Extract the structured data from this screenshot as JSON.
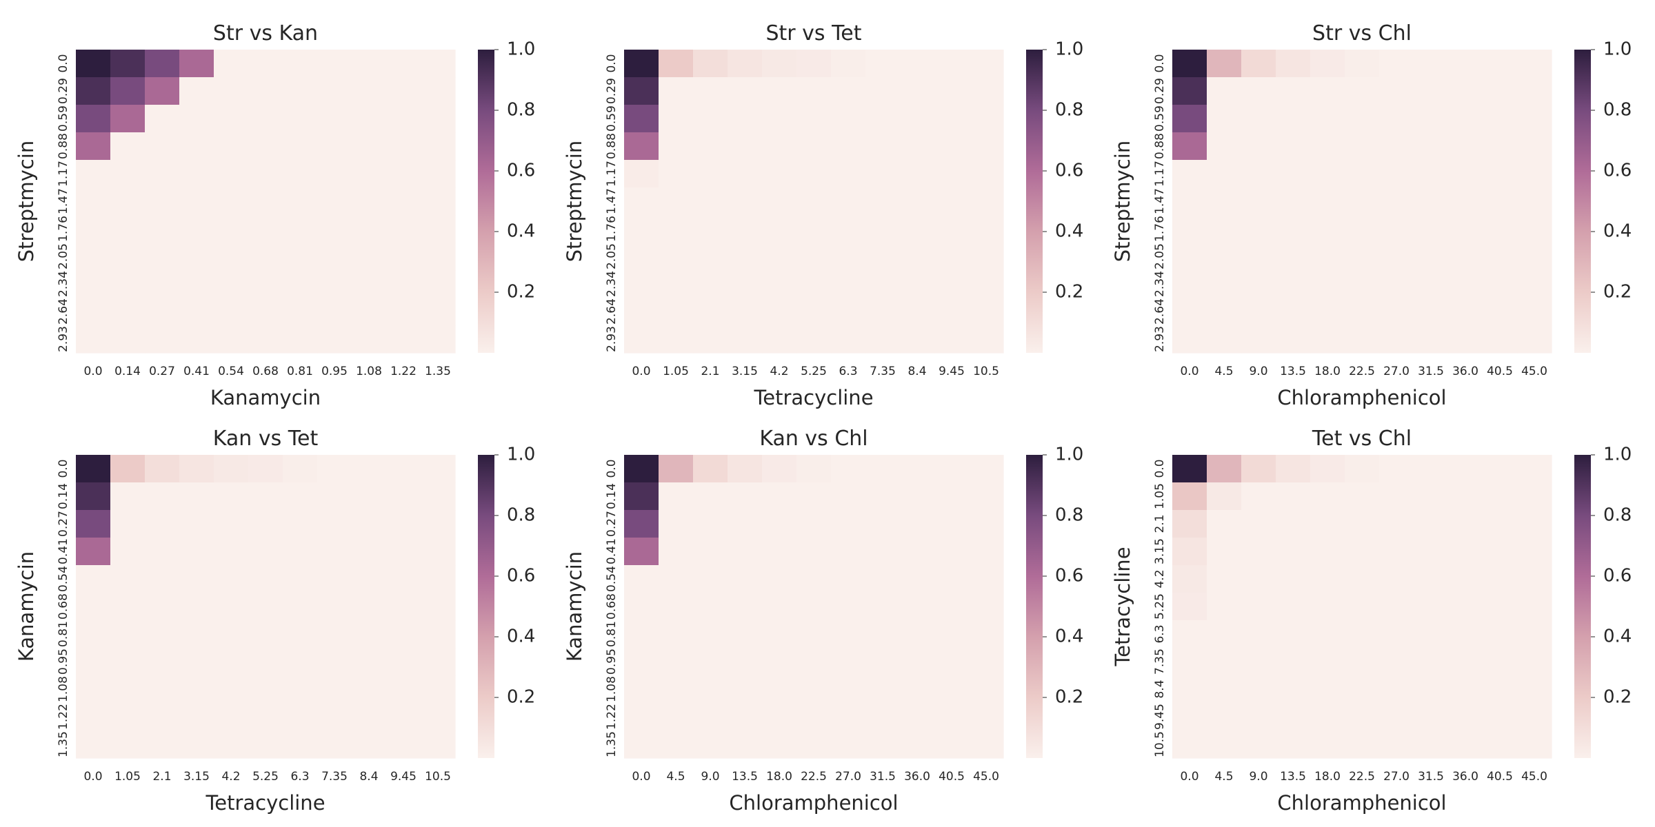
{
  "colormap": {
    "name": "seaborn-cubehelix-light",
    "stops": [
      {
        "v": 0.0,
        "color": "#faf0ec"
      },
      {
        "v": 0.2,
        "color": "#eccbc8"
      },
      {
        "v": 0.4,
        "color": "#d4a0ad"
      },
      {
        "v": 0.6,
        "color": "#b06c98"
      },
      {
        "v": 0.8,
        "color": "#784b7e"
      },
      {
        "v": 1.0,
        "color": "#2d1e3e"
      }
    ]
  },
  "chart_data": [
    {
      "type": "heatmap",
      "title": "Str vs Kan",
      "xlabel": "Kanamycin",
      "ylabel": "Streptmycin",
      "x_ticks": [
        "0.0",
        "0.14",
        "0.27",
        "0.41",
        "0.54",
        "0.68",
        "0.81",
        "0.95",
        "1.08",
        "1.22",
        "1.35"
      ],
      "y_ticks": [
        "0.0",
        "0.29",
        "0.59",
        "0.88",
        "1.17",
        "1.47",
        "1.76",
        "2.05",
        "2.34",
        "2.64",
        "2.93"
      ],
      "colorbar_ticks": [
        "0.2",
        "0.4",
        "0.6",
        "0.8",
        "1.0"
      ],
      "vmin": 0.0,
      "vmax": 1.0,
      "matrix": [
        [
          1.0,
          0.92,
          0.8,
          0.62,
          0,
          0,
          0,
          0,
          0,
          0,
          0
        ],
        [
          0.92,
          0.8,
          0.62,
          0,
          0,
          0,
          0,
          0,
          0,
          0,
          0
        ],
        [
          0.8,
          0.62,
          0,
          0,
          0,
          0,
          0,
          0,
          0,
          0,
          0
        ],
        [
          0.62,
          0,
          0,
          0,
          0,
          0,
          0,
          0,
          0,
          0,
          0
        ],
        [
          0,
          0,
          0,
          0,
          0,
          0,
          0,
          0,
          0,
          0,
          0
        ],
        [
          0,
          0,
          0,
          0,
          0,
          0,
          0,
          0,
          0,
          0,
          0
        ],
        [
          0,
          0,
          0,
          0,
          0,
          0,
          0,
          0,
          0,
          0,
          0
        ],
        [
          0,
          0,
          0,
          0,
          0,
          0,
          0,
          0,
          0,
          0,
          0
        ],
        [
          0,
          0,
          0,
          0,
          0,
          0,
          0,
          0,
          0,
          0,
          0
        ],
        [
          0,
          0,
          0,
          0,
          0,
          0,
          0,
          0,
          0,
          0,
          0
        ],
        [
          0,
          0,
          0,
          0,
          0,
          0,
          0,
          0,
          0,
          0,
          0
        ]
      ]
    },
    {
      "type": "heatmap",
      "title": "Str vs Tet",
      "xlabel": "Tetracycline",
      "ylabel": "Streptmycin",
      "x_ticks": [
        "0.0",
        "1.05",
        "2.1",
        "3.15",
        "4.2",
        "5.25",
        "6.3",
        "7.35",
        "8.4",
        "9.45",
        "10.5"
      ],
      "y_ticks": [
        "0.0",
        "0.29",
        "0.59",
        "0.88",
        "1.17",
        "1.47",
        "1.76",
        "2.05",
        "2.34",
        "2.64",
        "2.93"
      ],
      "colorbar_ticks": [
        "0.2",
        "0.4",
        "0.6",
        "0.8",
        "1.0"
      ],
      "vmin": 0.0,
      "vmax": 1.0,
      "matrix": [
        [
          1.0,
          0.2,
          0.1,
          0.06,
          0.04,
          0.03,
          0.01,
          0,
          0,
          0,
          0
        ],
        [
          0.92,
          0,
          0,
          0,
          0,
          0,
          0,
          0,
          0,
          0,
          0
        ],
        [
          0.8,
          0,
          0,
          0,
          0,
          0,
          0,
          0,
          0,
          0,
          0
        ],
        [
          0.62,
          0,
          0,
          0,
          0,
          0,
          0,
          0,
          0,
          0,
          0
        ],
        [
          0.02,
          0,
          0,
          0,
          0,
          0,
          0,
          0,
          0,
          0,
          0
        ],
        [
          0,
          0,
          0,
          0,
          0,
          0,
          0,
          0,
          0,
          0,
          0
        ],
        [
          0,
          0,
          0,
          0,
          0,
          0,
          0,
          0,
          0,
          0,
          0
        ],
        [
          0,
          0,
          0,
          0,
          0,
          0,
          0,
          0,
          0,
          0,
          0
        ],
        [
          0,
          0,
          0,
          0,
          0,
          0,
          0,
          0,
          0,
          0,
          0
        ],
        [
          0,
          0,
          0,
          0,
          0,
          0,
          0,
          0,
          0,
          0,
          0
        ],
        [
          0,
          0,
          0,
          0,
          0,
          0,
          0,
          0,
          0,
          0,
          0
        ]
      ]
    },
    {
      "type": "heatmap",
      "title": "Str vs Chl",
      "xlabel": "Chloramphenicol",
      "ylabel": "Streptmycin",
      "x_ticks": [
        "0.0",
        "4.5",
        "9.0",
        "13.5",
        "18.0",
        "22.5",
        "27.0",
        "31.5",
        "36.0",
        "40.5",
        "45.0"
      ],
      "y_ticks": [
        "0.0",
        "0.29",
        "0.59",
        "0.88",
        "1.17",
        "1.47",
        "1.76",
        "2.05",
        "2.34",
        "2.64",
        "2.93"
      ],
      "colorbar_ticks": [
        "0.2",
        "0.4",
        "0.6",
        "0.8",
        "1.0"
      ],
      "vmin": 0.0,
      "vmax": 1.0,
      "matrix": [
        [
          1.0,
          0.3,
          0.12,
          0.06,
          0.03,
          0.01,
          0,
          0,
          0,
          0,
          0
        ],
        [
          0.92,
          0,
          0,
          0,
          0,
          0,
          0,
          0,
          0,
          0,
          0
        ],
        [
          0.8,
          0,
          0,
          0,
          0,
          0,
          0,
          0,
          0,
          0,
          0
        ],
        [
          0.62,
          0,
          0,
          0,
          0,
          0,
          0,
          0,
          0,
          0,
          0
        ],
        [
          0,
          0,
          0,
          0,
          0,
          0,
          0,
          0,
          0,
          0,
          0
        ],
        [
          0,
          0,
          0,
          0,
          0,
          0,
          0,
          0,
          0,
          0,
          0
        ],
        [
          0,
          0,
          0,
          0,
          0,
          0,
          0,
          0,
          0,
          0,
          0
        ],
        [
          0,
          0,
          0,
          0,
          0,
          0,
          0,
          0,
          0,
          0,
          0
        ],
        [
          0,
          0,
          0,
          0,
          0,
          0,
          0,
          0,
          0,
          0,
          0
        ],
        [
          0,
          0,
          0,
          0,
          0,
          0,
          0,
          0,
          0,
          0,
          0
        ],
        [
          0,
          0,
          0,
          0,
          0,
          0,
          0,
          0,
          0,
          0,
          0
        ]
      ]
    },
    {
      "type": "heatmap",
      "title": "Kan vs Tet",
      "xlabel": "Tetracycline",
      "ylabel": "Kanamycin",
      "x_ticks": [
        "0.0",
        "1.05",
        "2.1",
        "3.15",
        "4.2",
        "5.25",
        "6.3",
        "7.35",
        "8.4",
        "9.45",
        "10.5"
      ],
      "y_ticks": [
        "0.0",
        "0.14",
        "0.27",
        "0.41",
        "0.54",
        "0.68",
        "0.81",
        "0.95",
        "1.08",
        "1.22",
        "1.35"
      ],
      "colorbar_ticks": [
        "0.2",
        "0.4",
        "0.6",
        "0.8",
        "1.0"
      ],
      "vmin": 0.0,
      "vmax": 1.0,
      "matrix": [
        [
          1.0,
          0.2,
          0.1,
          0.06,
          0.04,
          0.03,
          0.01,
          0,
          0,
          0,
          0
        ],
        [
          0.92,
          0,
          0,
          0,
          0,
          0,
          0,
          0,
          0,
          0,
          0
        ],
        [
          0.8,
          0,
          0,
          0,
          0,
          0,
          0,
          0,
          0,
          0,
          0
        ],
        [
          0.62,
          0,
          0,
          0,
          0,
          0,
          0,
          0,
          0,
          0,
          0
        ],
        [
          0,
          0,
          0,
          0,
          0,
          0,
          0,
          0,
          0,
          0,
          0
        ],
        [
          0,
          0,
          0,
          0,
          0,
          0,
          0,
          0,
          0,
          0,
          0
        ],
        [
          0,
          0,
          0,
          0,
          0,
          0,
          0,
          0,
          0,
          0,
          0
        ],
        [
          0,
          0,
          0,
          0,
          0,
          0,
          0,
          0,
          0,
          0,
          0
        ],
        [
          0,
          0,
          0,
          0,
          0,
          0,
          0,
          0,
          0,
          0,
          0
        ],
        [
          0,
          0,
          0,
          0,
          0,
          0,
          0,
          0,
          0,
          0,
          0
        ],
        [
          0,
          0,
          0,
          0,
          0,
          0,
          0,
          0,
          0,
          0,
          0
        ]
      ]
    },
    {
      "type": "heatmap",
      "title": "Kan vs Chl",
      "xlabel": "Chloramphenicol",
      "ylabel": "Kanamycin",
      "x_ticks": [
        "0.0",
        "4.5",
        "9.0",
        "13.5",
        "18.0",
        "22.5",
        "27.0",
        "31.5",
        "36.0",
        "40.5",
        "45.0"
      ],
      "y_ticks": [
        "0.0",
        "0.14",
        "0.27",
        "0.41",
        "0.54",
        "0.68",
        "0.81",
        "0.95",
        "1.08",
        "1.22",
        "1.35"
      ],
      "colorbar_ticks": [
        "0.2",
        "0.4",
        "0.6",
        "0.8",
        "1.0"
      ],
      "vmin": 0.0,
      "vmax": 1.0,
      "matrix": [
        [
          1.0,
          0.3,
          0.12,
          0.06,
          0.03,
          0.01,
          0,
          0,
          0,
          0,
          0
        ],
        [
          0.92,
          0,
          0,
          0,
          0,
          0,
          0,
          0,
          0,
          0,
          0
        ],
        [
          0.8,
          0,
          0,
          0,
          0,
          0,
          0,
          0,
          0,
          0,
          0
        ],
        [
          0.62,
          0,
          0,
          0,
          0,
          0,
          0,
          0,
          0,
          0,
          0
        ],
        [
          0,
          0,
          0,
          0,
          0,
          0,
          0,
          0,
          0,
          0,
          0
        ],
        [
          0,
          0,
          0,
          0,
          0,
          0,
          0,
          0,
          0,
          0,
          0
        ],
        [
          0,
          0,
          0,
          0,
          0,
          0,
          0,
          0,
          0,
          0,
          0
        ],
        [
          0,
          0,
          0,
          0,
          0,
          0,
          0,
          0,
          0,
          0,
          0
        ],
        [
          0,
          0,
          0,
          0,
          0,
          0,
          0,
          0,
          0,
          0,
          0
        ],
        [
          0,
          0,
          0,
          0,
          0,
          0,
          0,
          0,
          0,
          0,
          0
        ],
        [
          0,
          0,
          0,
          0,
          0,
          0,
          0,
          0,
          0,
          0,
          0
        ]
      ]
    },
    {
      "type": "heatmap",
      "title": "Tet vs Chl",
      "xlabel": "Chloramphenicol",
      "ylabel": "Tetracycline",
      "x_ticks": [
        "0.0",
        "4.5",
        "9.0",
        "13.5",
        "18.0",
        "22.5",
        "27.0",
        "31.5",
        "36.0",
        "40.5",
        "45.0"
      ],
      "y_ticks": [
        "0.0",
        "1.05",
        "2.1",
        "3.15",
        "4.2",
        "5.25",
        "6.3",
        "7.35",
        "8.4",
        "9.45",
        "10.5"
      ],
      "colorbar_ticks": [
        "0.2",
        "0.4",
        "0.6",
        "0.8",
        "1.0"
      ],
      "vmin": 0.0,
      "vmax": 1.0,
      "matrix": [
        [
          1.0,
          0.3,
          0.12,
          0.06,
          0.03,
          0.01,
          0,
          0,
          0,
          0,
          0
        ],
        [
          0.22,
          0.04,
          0,
          0,
          0,
          0,
          0,
          0,
          0,
          0,
          0
        ],
        [
          0.1,
          0,
          0,
          0,
          0,
          0,
          0,
          0,
          0,
          0,
          0
        ],
        [
          0.06,
          0,
          0,
          0,
          0,
          0,
          0,
          0,
          0,
          0,
          0
        ],
        [
          0.04,
          0,
          0,
          0,
          0,
          0,
          0,
          0,
          0,
          0,
          0
        ],
        [
          0.03,
          0,
          0,
          0,
          0,
          0,
          0,
          0,
          0,
          0,
          0
        ],
        [
          0,
          0,
          0,
          0,
          0,
          0,
          0,
          0,
          0,
          0,
          0
        ],
        [
          0,
          0,
          0,
          0,
          0,
          0,
          0,
          0,
          0,
          0,
          0
        ],
        [
          0,
          0,
          0,
          0,
          0,
          0,
          0,
          0,
          0,
          0,
          0
        ],
        [
          0,
          0,
          0,
          0,
          0,
          0,
          0,
          0,
          0,
          0,
          0
        ],
        [
          0,
          0,
          0,
          0,
          0,
          0,
          0,
          0,
          0,
          0,
          0
        ]
      ]
    }
  ]
}
